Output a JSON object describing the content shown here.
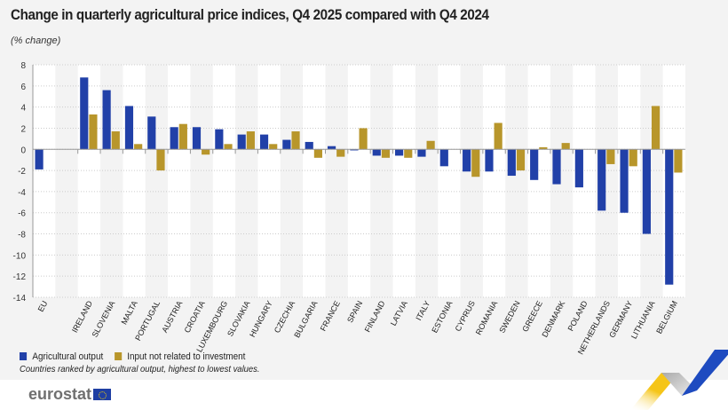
{
  "chart_data": {
    "type": "bar",
    "title": "Change in quarterly agricultural price indices, Q4 2025 compared with Q4 2024",
    "subtitle": "(% change)",
    "categories": [
      "EU",
      "IRELAND",
      "SLOVENIA",
      "MALTA",
      "PORTUGAL",
      "AUSTRIA",
      "CROATIA",
      "LUXEMBOURG",
      "SLOVAKIA",
      "HUNGARY",
      "CZECHIA",
      "BULGARIA",
      "FRANCE",
      "SPAIN",
      "FINLAND",
      "LATVIA",
      "ITALY",
      "ESTONIA",
      "CYPRUS",
      "ROMANIA",
      "SWEDEN",
      "GREECE",
      "DENMARK",
      "POLAND",
      "NETHERLANDS",
      "GERMANY",
      "LITHUANIA",
      "BELGIUM"
    ],
    "series": [
      {
        "name": "Agricultural output",
        "color": "#2140a8",
        "values": [
          -1.9,
          6.8,
          5.6,
          4.1,
          3.1,
          2.1,
          2.1,
          1.9,
          1.4,
          1.4,
          0.9,
          0.7,
          0.3,
          -0.1,
          -0.6,
          -0.6,
          -0.7,
          -1.6,
          -2.1,
          -2.1,
          -2.5,
          -2.9,
          -3.3,
          -3.6,
          -5.8,
          -6.0,
          -8.0,
          -12.8
        ]
      },
      {
        "name": "Input not related to investment",
        "color": "#b8962b",
        "values": [
          0.0,
          3.3,
          1.7,
          0.5,
          -2.0,
          2.4,
          -0.5,
          0.5,
          1.7,
          0.5,
          1.7,
          -0.8,
          -0.7,
          2.0,
          -0.8,
          -0.8,
          0.8,
          0.0,
          -2.6,
          2.5,
          -2.0,
          0.2,
          0.6,
          0.0,
          -1.4,
          -1.6,
          4.1,
          -2.2
        ]
      }
    ],
    "yticks": [
      8,
      6,
      4,
      2,
      0,
      -2,
      -4,
      -6,
      -8,
      -10,
      -12,
      -14
    ],
    "ylim": [
      -14,
      8
    ],
    "grid": true,
    "legend_position": "bottom-left",
    "note": "Countries ranked by agricultural output, highest to lowest values."
  },
  "branding": {
    "logo": "eurostat"
  }
}
